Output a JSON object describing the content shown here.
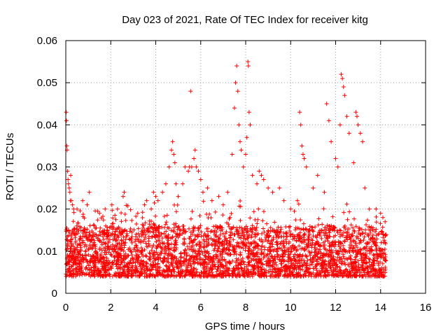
{
  "chart_data": {
    "type": "scatter",
    "title": "Day 023 of 2021, Rate Of TEC Index for receiver kitg",
    "xlabel": "GPS time / hours",
    "ylabel": "ROTI / TECUs",
    "xlim": [
      0,
      16
    ],
    "ylim": [
      0,
      0.06
    ],
    "x_ticks": [
      0,
      2,
      4,
      6,
      8,
      10,
      12,
      14,
      16
    ],
    "x_tick_labels": [
      "0",
      "2",
      "4",
      "6",
      "8",
      "10",
      "12",
      "14",
      "16"
    ],
    "y_ticks": [
      0,
      0.01,
      0.02,
      0.03,
      0.04,
      0.05,
      0.06
    ],
    "y_tick_labels": [
      "0",
      "0.01",
      "0.02",
      "0.03",
      "0.04",
      "0.05",
      "0.06"
    ],
    "grid": true,
    "marker": "+",
    "color": "#ff0000",
    "series": [
      {
        "name": "ROTI",
        "note": "dense background band 0.002–0.018 TECUs for 0–14.25 h, plus elevated excursions listed here",
        "x": [
          0.02,
          0.03,
          0.05,
          0.06,
          0.08,
          0.1,
          0.12,
          0.15,
          0.18,
          0.2,
          0.22,
          0.25,
          0.3,
          0.35,
          0.5,
          0.75,
          0.95,
          1.05,
          1.5,
          1.75,
          2.05,
          2.3,
          2.55,
          2.6,
          3.2,
          3.5,
          3.6,
          3.8,
          3.9,
          4.0,
          4.1,
          4.3,
          4.45,
          4.6,
          4.7,
          4.75,
          4.8,
          4.85,
          4.9,
          5.0,
          5.2,
          5.3,
          5.45,
          5.5,
          5.55,
          5.6,
          5.7,
          5.75,
          5.8,
          5.9,
          6.0,
          6.1,
          6.3,
          6.5,
          6.8,
          7.0,
          7.2,
          7.4,
          7.5,
          7.55,
          7.6,
          7.65,
          7.7,
          7.75,
          7.8,
          7.9,
          8.0,
          8.05,
          8.1,
          8.12,
          8.15,
          8.2,
          8.3,
          8.5,
          8.6,
          8.7,
          8.8,
          9.0,
          9.2,
          9.5,
          9.7,
          10.0,
          10.3,
          10.4,
          10.45,
          10.5,
          10.55,
          10.6,
          10.7,
          11.0,
          11.2,
          11.5,
          11.6,
          11.7,
          11.8,
          12.0,
          12.1,
          12.2,
          12.25,
          12.3,
          12.35,
          12.4,
          12.5,
          12.6,
          12.8,
          12.9,
          12.95,
          13.0,
          13.1,
          13.2,
          13.3,
          13.5,
          13.8,
          14.0,
          14.1,
          14.2
        ],
        "y": [
          0.043,
          0.041,
          0.035,
          0.034,
          0.029,
          0.027,
          0.026,
          0.025,
          0.024,
          0.022,
          0.028,
          0.022,
          0.021,
          0.02,
          0.02,
          0.022,
          0.021,
          0.024,
          0.019,
          0.02,
          0.021,
          0.02,
          0.023,
          0.024,
          0.019,
          0.021,
          0.022,
          0.02,
          0.024,
          0.023,
          0.022,
          0.024,
          0.026,
          0.03,
          0.034,
          0.036,
          0.033,
          0.031,
          0.026,
          0.023,
          0.026,
          0.03,
          0.029,
          0.03,
          0.048,
          0.03,
          0.032,
          0.034,
          0.03,
          0.029,
          0.027,
          0.024,
          0.025,
          0.022,
          0.023,
          0.021,
          0.024,
          0.033,
          0.044,
          0.05,
          0.054,
          0.048,
          0.04,
          0.036,
          0.034,
          0.03,
          0.033,
          0.037,
          0.055,
          0.054,
          0.043,
          0.04,
          0.028,
          0.026,
          0.029,
          0.028,
          0.027,
          0.025,
          0.024,
          0.025,
          0.022,
          0.02,
          0.022,
          0.043,
          0.04,
          0.035,
          0.033,
          0.032,
          0.03,
          0.025,
          0.028,
          0.024,
          0.045,
          0.041,
          0.036,
          0.032,
          0.03,
          0.04,
          0.052,
          0.051,
          0.049,
          0.047,
          0.042,
          0.038,
          0.031,
          0.043,
          0.042,
          0.04,
          0.038,
          0.036,
          0.025,
          0.02,
          0.02,
          0.019,
          0.018,
          0.017
        ]
      }
    ]
  }
}
